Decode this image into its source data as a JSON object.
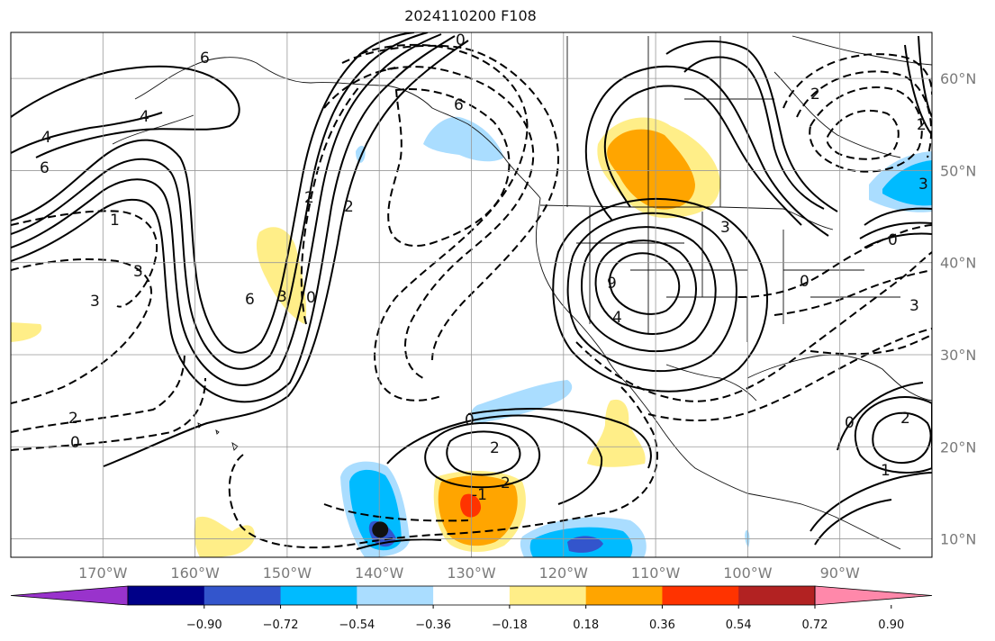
{
  "title": "2024110200 F108",
  "map": {
    "lon_range": [
      -180,
      -80
    ],
    "lat_range": [
      8,
      65
    ],
    "lon_ticks": [
      {
        "lon": -170,
        "label": "170°W"
      },
      {
        "lon": -160,
        "label": "160°W"
      },
      {
        "lon": -150,
        "label": "150°W"
      },
      {
        "lon": -140,
        "label": "140°W"
      },
      {
        "lon": -130,
        "label": "130°W"
      },
      {
        "lon": -120,
        "label": "120°W"
      },
      {
        "lon": -110,
        "label": "110°W"
      },
      {
        "lon": -100,
        "label": "100°W"
      },
      {
        "lon": -90,
        "label": "90°W"
      }
    ],
    "lat_ticks": [
      {
        "lat": 60,
        "label": "60°N"
      },
      {
        "lat": 50,
        "label": "50°N"
      },
      {
        "lat": 40,
        "label": "40°N"
      },
      {
        "lat": 30,
        "label": "30°N"
      },
      {
        "lat": 20,
        "label": "20°N"
      },
      {
        "lat": 10,
        "label": "10°N"
      }
    ],
    "gridlines": true,
    "contour_labels": [
      "6",
      "4",
      "4",
      "6",
      "1",
      "3",
      "3",
      "2",
      "0",
      "6",
      "3",
      "0",
      "2",
      "2",
      "6",
      "0",
      "3",
      "9",
      "4",
      "0",
      "0",
      "2",
      "2",
      "2",
      "-1",
      "0",
      "3",
      "0",
      "2",
      "1",
      "2",
      "3"
    ],
    "marker": {
      "lon": -139.9,
      "lat": 11.0
    }
  },
  "colorbar": {
    "colors": [
      "#9933cc",
      "#000088",
      "#3355cc",
      "#00bbff",
      "#aaddff",
      "#ffffff",
      "#ffee88",
      "#ffa500",
      "#ff3300",
      "#b22222",
      "#ff88aa"
    ],
    "ticks": [
      "−0.90",
      "−0.72",
      "−0.54",
      "−0.36",
      "−0.18",
      "0.18",
      "0.36",
      "0.54",
      "0.72",
      "0.90"
    ]
  }
}
